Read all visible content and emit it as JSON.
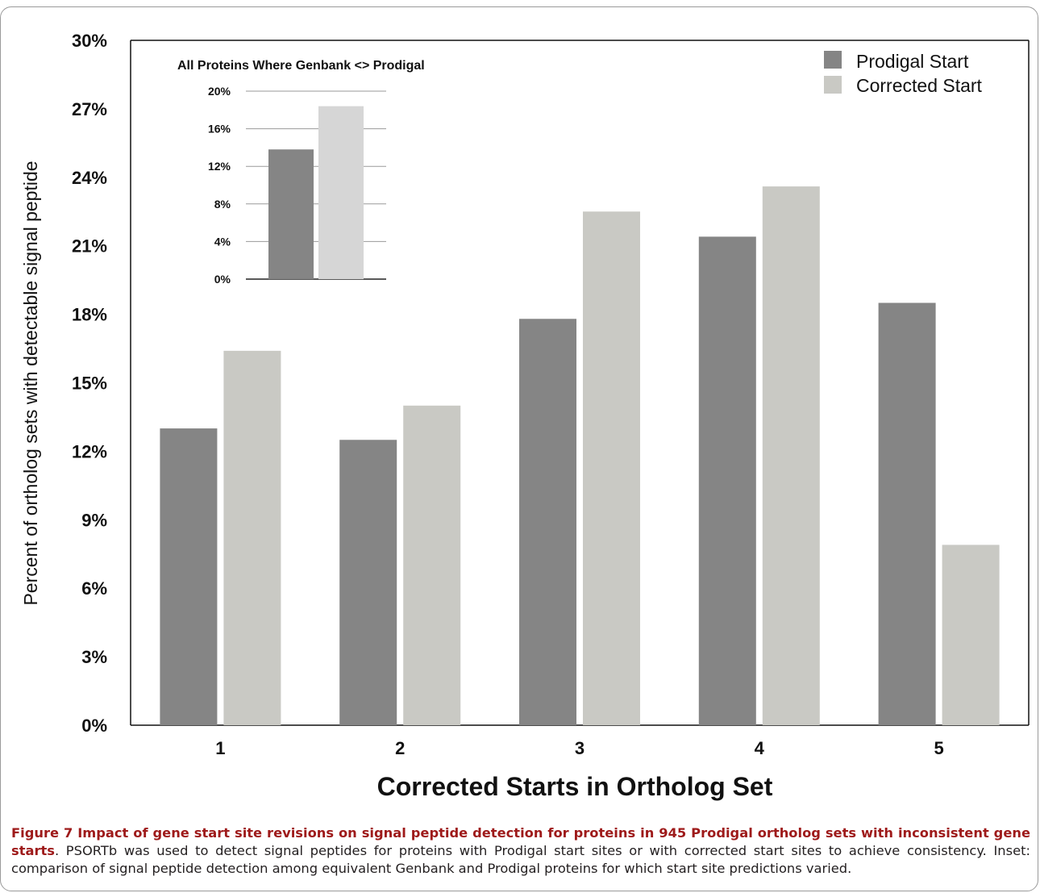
{
  "chart_data": [
    {
      "type": "bar",
      "xlabel": "Corrected Starts in Ortholog Set",
      "ylabel": "Percent of ortholog sets with detectable signal peptide",
      "ylim": [
        0,
        30
      ],
      "yticks": [
        "0%",
        "3%",
        "6%",
        "9%",
        "12%",
        "15%",
        "18%",
        "21%",
        "24%",
        "27%",
        "30%"
      ],
      "categories": [
        "1",
        "2",
        "3",
        "4",
        "5"
      ],
      "series": [
        {
          "name": "Prodigal Start",
          "values": [
            13.0,
            12.5,
            17.8,
            21.4,
            18.5
          ]
        },
        {
          "name": "Corrected Start",
          "values": [
            16.4,
            14.0,
            22.5,
            23.6,
            7.9
          ]
        }
      ],
      "legend": "top-right",
      "grid": false
    },
    {
      "type": "bar",
      "title": "All Proteins Where Genbank <> Prodigal",
      "ylim": [
        0,
        20
      ],
      "yticks": [
        "0%",
        "4%",
        "8%",
        "12%",
        "16%",
        "20%"
      ],
      "series": [
        {
          "name": "Prodigal Start",
          "values": [
            13.8
          ]
        },
        {
          "name": "Corrected Start",
          "values": [
            18.4
          ]
        }
      ],
      "grid": true
    }
  ],
  "colors": {
    "prodigal": "#858585",
    "corrected": "#c9c9c4",
    "axis": "#111111",
    "caption_title": "#9e1a1a"
  },
  "caption": {
    "title": "Figure 7 Impact of gene start site revisions on signal peptide detection for proteins in 945 Prodigal ortholog sets with inconsistent gene starts",
    "text": ". PSORTb was used to detect signal peptides for proteins with Prodigal start sites or with corrected start sites to achieve consistency. Inset: comparison of signal peptide detection among equivalent Genbank and Prodigal proteins for which start site predictions varied."
  }
}
